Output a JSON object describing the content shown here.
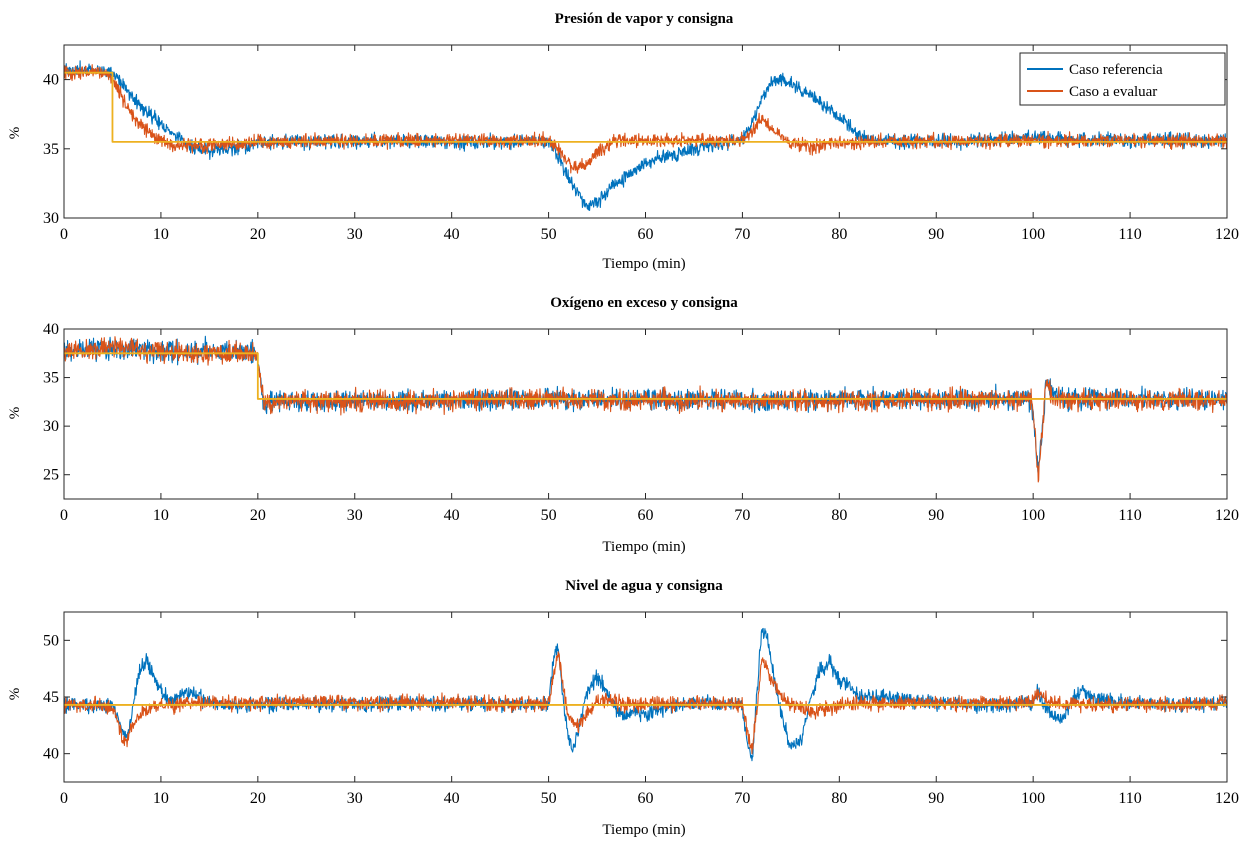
{
  "colors": {
    "reference": "#0072BD",
    "evaluate": "#D95319",
    "setpoint": "#EDB120"
  },
  "legend": {
    "placement": "top-right",
    "entries": [
      "Caso referencia",
      "Caso a evaluar"
    ]
  },
  "chart_data": [
    {
      "type": "line",
      "title": "Presión de vapor y consigna",
      "xlabel": "Tiempo (min)",
      "ylabel": "%",
      "xlim": [
        0,
        120
      ],
      "ylim": [
        30,
        42.5
      ],
      "xticks": [
        "0",
        "10",
        "20",
        "30",
        "40",
        "50",
        "60",
        "70",
        "80",
        "90",
        "100",
        "110",
        "120"
      ],
      "yticks": [
        "30",
        "35",
        "40"
      ],
      "xtick_values": [
        0,
        10,
        20,
        30,
        40,
        50,
        60,
        70,
        80,
        90,
        100,
        110,
        120
      ],
      "ytick_values": [
        30,
        35,
        40
      ],
      "legend": true,
      "noise": {
        "reference": 0.35,
        "evaluate": 0.35
      },
      "series": [
        {
          "name": "Caso referencia",
          "role": "reference",
          "x": [
            0,
            4.5,
            5.5,
            7,
            9,
            11,
            13,
            15,
            18,
            22,
            30,
            40,
            50,
            51,
            52,
            53,
            54,
            55,
            57,
            60,
            65,
            70,
            71,
            72,
            73,
            74,
            75,
            77,
            80,
            82,
            84,
            90,
            100,
            110,
            120
          ],
          "y": [
            40.7,
            40.7,
            40.2,
            38.8,
            37.4,
            36.2,
            35.2,
            34.8,
            35.1,
            35.5,
            35.6,
            35.5,
            35.5,
            34.5,
            33.0,
            31.8,
            30.8,
            31.2,
            32.5,
            34.0,
            35.0,
            35.6,
            36.8,
            38.6,
            39.8,
            40.0,
            39.7,
            38.8,
            37.3,
            36.0,
            35.6,
            35.5,
            35.8,
            35.6,
            35.6
          ]
        },
        {
          "name": "Caso a evaluar",
          "role": "evaluate",
          "x": [
            0,
            4.5,
            5.5,
            7,
            9,
            11,
            13,
            16,
            20,
            30,
            40,
            50,
            51,
            52,
            53,
            54,
            55,
            57,
            60,
            65,
            70,
            71,
            72,
            73,
            75,
            77,
            80,
            85,
            90,
            100,
            110,
            120
          ],
          "y": [
            40.5,
            40.5,
            39.5,
            37.4,
            36.0,
            35.2,
            35.2,
            35.3,
            35.5,
            35.6,
            35.6,
            35.6,
            35.0,
            34.0,
            33.6,
            34.0,
            34.8,
            35.6,
            35.6,
            35.6,
            35.6,
            36.2,
            37.3,
            36.4,
            35.4,
            35.2,
            35.4,
            35.5,
            35.5,
            35.6,
            35.6,
            35.6
          ]
        },
        {
          "name": "",
          "role": "setpoint",
          "step": true,
          "x": [
            0,
            5,
            5,
            70,
            70,
            120
          ],
          "y": [
            40.5,
            40.5,
            35.5,
            35.5,
            35.5,
            35.5
          ]
        }
      ]
    },
    {
      "type": "line",
      "title": "Oxígeno en exceso y consigna",
      "xlabel": "Tiempo (min)",
      "ylabel": "%",
      "xlim": [
        0,
        120
      ],
      "ylim": [
        22.5,
        40
      ],
      "xticks": [
        "0",
        "10",
        "20",
        "30",
        "40",
        "50",
        "60",
        "70",
        "80",
        "90",
        "100",
        "110",
        "120"
      ],
      "yticks": [
        "25",
        "30",
        "35",
        "40"
      ],
      "xtick_values": [
        0,
        10,
        20,
        30,
        40,
        50,
        60,
        70,
        80,
        90,
        100,
        110,
        120
      ],
      "ytick_values": [
        25,
        30,
        35,
        40
      ],
      "legend": false,
      "noise": {
        "reference": 0.75,
        "evaluate": 0.75
      },
      "series": [
        {
          "name": "Caso referencia",
          "role": "reference",
          "x": [
            0,
            5,
            10,
            15,
            19.8,
            20.3,
            20.6,
            21,
            22,
            30,
            40,
            50,
            60,
            70,
            80,
            90,
            99.8,
            100.2,
            100.5,
            100.9,
            101.3,
            101.8,
            103,
            110,
            120
          ],
          "y": [
            37.8,
            38.0,
            37.8,
            37.7,
            37.7,
            35.0,
            31.8,
            32.3,
            32.6,
            32.7,
            32.7,
            32.8,
            32.7,
            32.7,
            32.8,
            32.8,
            32.8,
            29.0,
            24.8,
            28.5,
            34.5,
            33.6,
            32.8,
            32.8,
            32.8
          ]
        },
        {
          "name": "Caso a evaluar",
          "role": "evaluate",
          "x": [
            0,
            5,
            10,
            15,
            19.8,
            20.3,
            20.6,
            21,
            22,
            30,
            40,
            50,
            60,
            70,
            80,
            90,
            99.8,
            100.2,
            100.5,
            100.9,
            101.3,
            101.8,
            103,
            110,
            120
          ],
          "y": [
            37.6,
            38.2,
            37.6,
            37.5,
            37.6,
            34.8,
            32.0,
            32.5,
            32.6,
            32.6,
            32.6,
            32.9,
            32.7,
            32.6,
            32.6,
            32.7,
            32.7,
            29.2,
            24.8,
            28.8,
            34.6,
            33.4,
            32.7,
            32.7,
            32.7
          ]
        },
        {
          "name": "",
          "role": "setpoint",
          "step": true,
          "x": [
            0,
            20,
            20,
            120
          ],
          "y": [
            37.5,
            37.5,
            32.8,
            32.8
          ]
        }
      ]
    },
    {
      "type": "line",
      "title": "Nivel de agua y consigna",
      "xlabel": "Tiempo (min)",
      "ylabel": "%",
      "xlim": [
        0,
        120
      ],
      "ylim": [
        37.5,
        52.5
      ],
      "xticks": [
        "0",
        "10",
        "20",
        "30",
        "40",
        "50",
        "60",
        "70",
        "80",
        "90",
        "100",
        "110",
        "120"
      ],
      "yticks": [
        "40",
        "45",
        "50"
      ],
      "xtick_values": [
        0,
        10,
        20,
        30,
        40,
        50,
        60,
        70,
        80,
        90,
        100,
        110,
        120
      ],
      "ytick_values": [
        40,
        45,
        50
      ],
      "legend": false,
      "noise": {
        "reference": 0.45,
        "evaluate": 0.45
      },
      "series": [
        {
          "name": "Caso referencia",
          "role": "reference",
          "x": [
            0,
            5,
            5.5,
            6,
            6.5,
            7,
            7.5,
            8,
            8.5,
            9,
            10,
            11,
            12,
            13,
            14,
            15,
            20,
            30,
            40,
            50,
            50.5,
            51,
            51.5,
            52,
            52.5,
            53,
            54,
            55,
            56,
            57,
            58,
            59,
            60,
            61,
            62,
            65,
            70,
            70.5,
            71,
            71.5,
            72,
            72.5,
            73,
            74,
            75,
            76,
            77,
            78,
            79,
            80,
            81,
            82,
            90,
            95,
            100,
            100.5,
            101,
            102,
            103,
            104,
            105,
            106,
            110,
            120
          ],
          "y": [
            44.3,
            44.2,
            43.5,
            42.0,
            41.5,
            43.5,
            46.0,
            47.8,
            48.3,
            47.5,
            45.5,
            44.5,
            45.2,
            45.6,
            45.0,
            44.4,
            44.3,
            44.4,
            44.4,
            44.4,
            48.5,
            49.2,
            45.0,
            41.5,
            40.2,
            41.8,
            45.5,
            46.8,
            45.5,
            43.8,
            43.2,
            43.8,
            43.5,
            43.8,
            44.2,
            44.4,
            44.3,
            41.0,
            39.2,
            45.5,
            51.0,
            50.5,
            48.0,
            43.5,
            40.5,
            41.2,
            44.5,
            47.5,
            48.0,
            46.5,
            46.2,
            45.0,
            44.5,
            44.3,
            44.5,
            45.5,
            44.5,
            43.3,
            43.2,
            44.8,
            45.6,
            45.0,
            44.4,
            44.4
          ]
        },
        {
          "name": "Caso a evaluar",
          "role": "evaluate",
          "x": [
            0,
            5,
            5.5,
            6,
            6.5,
            7,
            8,
            9,
            10,
            12,
            14,
            20,
            30,
            40,
            50,
            50.5,
            51,
            51.5,
            52,
            53,
            54,
            55,
            56,
            57,
            58,
            60,
            65,
            70,
            70.5,
            71,
            71.5,
            72,
            72.5,
            73,
            74,
            75,
            76,
            77,
            78,
            80,
            82,
            90,
            100,
            100.5,
            101,
            102,
            105,
            110,
            120
          ],
          "y": [
            44.3,
            44.1,
            43.0,
            41.3,
            41.2,
            42.5,
            43.5,
            44.0,
            44.2,
            44.4,
            44.5,
            44.5,
            44.5,
            44.5,
            44.4,
            47.0,
            48.8,
            46.0,
            43.3,
            42.5,
            43.5,
            44.5,
            44.8,
            44.6,
            44.4,
            44.3,
            44.4,
            44.4,
            42.0,
            40.2,
            44.0,
            48.3,
            47.8,
            46.5,
            45.0,
            44.3,
            44.0,
            43.6,
            43.8,
            44.3,
            44.4,
            44.5,
            44.5,
            45.5,
            45.0,
            44.4,
            44.3,
            44.4,
            44.4
          ]
        },
        {
          "name": "",
          "role": "setpoint",
          "step": true,
          "x": [
            0,
            120
          ],
          "y": [
            44.3,
            44.3
          ]
        }
      ]
    }
  ]
}
